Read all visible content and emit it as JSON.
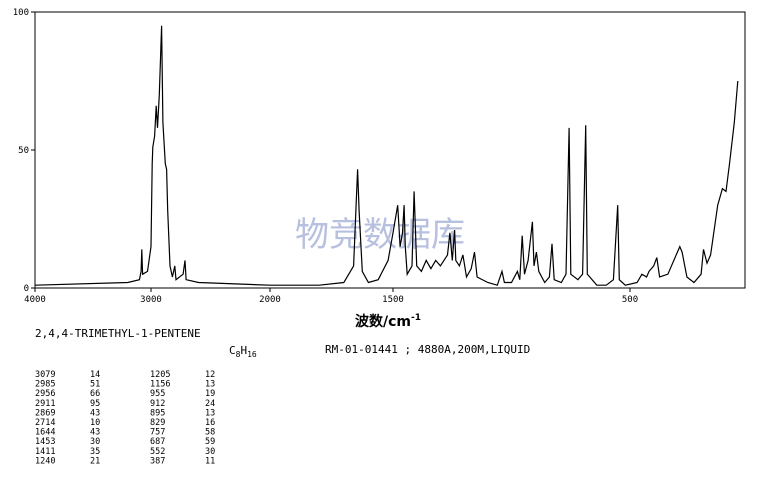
{
  "chart_data": {
    "type": "line",
    "xlim": [
      4000,
      0
    ],
    "xticks": [
      4000,
      3000,
      2000,
      1500,
      500
    ],
    "ylim": [
      0,
      100
    ],
    "yticks": [
      0,
      50,
      100
    ],
    "xlabel": "波数/cm",
    "xlabel_sup": "-1",
    "watermark": "物竞数据库",
    "color": "#000000",
    "x": [
      4000,
      3200,
      3100,
      3085,
      3079,
      3072,
      3030,
      3000,
      2990,
      2985,
      2970,
      2956,
      2945,
      2930,
      2911,
      2900,
      2880,
      2869,
      2860,
      2840,
      2820,
      2800,
      2790,
      2730,
      2714,
      2705,
      2600,
      2000,
      1800,
      1700,
      1660,
      1650,
      1644,
      1638,
      1625,
      1600,
      1560,
      1520,
      1500,
      1480,
      1470,
      1460,
      1453,
      1448,
      1440,
      1420,
      1411,
      1400,
      1380,
      1360,
      1340,
      1320,
      1300,
      1270,
      1260,
      1250,
      1240,
      1235,
      1220,
      1205,
      1190,
      1170,
      1156,
      1145,
      1100,
      1060,
      1040,
      1030,
      1000,
      975,
      965,
      955,
      945,
      930,
      912,
      905,
      895,
      885,
      860,
      840,
      829,
      820,
      790,
      770,
      757,
      750,
      720,
      700,
      687,
      680,
      640,
      600,
      570,
      552,
      545,
      520,
      470,
      450,
      430,
      420,
      400,
      387,
      375,
      340,
      300,
      290,
      280,
      260,
      230,
      200,
      190,
      175,
      160,
      130,
      110,
      95,
      80,
      60,
      45
    ],
    "values": [
      1,
      2,
      3,
      6,
      14,
      5,
      6,
      15,
      45,
      51,
      55,
      66,
      58,
      70,
      95,
      60,
      45,
      43,
      28,
      8,
      4,
      8,
      3,
      5,
      10,
      3,
      2,
      1,
      1,
      2,
      8,
      30,
      43,
      28,
      6,
      2,
      3,
      10,
      20,
      30,
      15,
      20,
      30,
      15,
      5,
      8,
      35,
      8,
      6,
      10,
      7,
      10,
      8,
      12,
      20,
      10,
      21,
      10,
      8,
      12,
      4,
      7,
      13,
      4,
      2,
      1,
      6,
      2,
      2,
      6,
      3,
      19,
      5,
      10,
      24,
      8,
      13,
      6,
      2,
      4,
      16,
      3,
      2,
      5,
      58,
      5,
      3,
      5,
      59,
      5,
      1,
      1,
      3,
      30,
      3,
      1,
      2,
      5,
      4,
      6,
      8,
      11,
      4,
      5,
      13,
      15,
      13,
      4,
      2,
      5,
      14,
      9,
      12,
      30,
      36,
      35,
      45,
      60,
      75
    ]
  },
  "compound": "2,4,4-TRIMETHYL-1-PENTENE",
  "formula": [
    "C",
    "8",
    "H",
    "16"
  ],
  "info": "RM-01-01441 ; 4880A,200M,LIQUID",
  "table": {
    "rows": [
      [
        "3079",
        "14",
        "1205",
        "12"
      ],
      [
        "2985",
        "51",
        "1156",
        "13"
      ],
      [
        "2956",
        "66",
        "955",
        "19"
      ],
      [
        "2911",
        "95",
        "912",
        "24"
      ],
      [
        "2869",
        "43",
        "895",
        "13"
      ],
      [
        "2714",
        "10",
        "829",
        "16"
      ],
      [
        "1644",
        "43",
        "757",
        "58"
      ],
      [
        "1453",
        "30",
        "687",
        "59"
      ],
      [
        "1411",
        "35",
        "552",
        "30"
      ],
      [
        "1240",
        "21",
        "387",
        "11"
      ]
    ]
  }
}
